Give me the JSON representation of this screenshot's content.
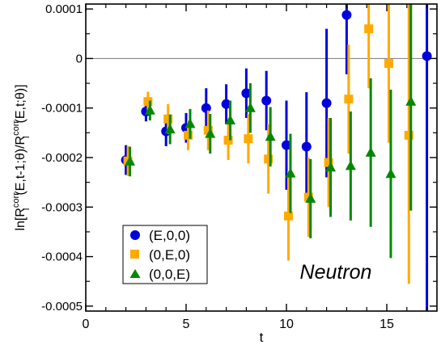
{
  "chart_data": {
    "type": "scatter",
    "xlabel": "t",
    "ylabel": {
      "main": "ln[R",
      "sup1": "corr",
      "sub1": "i",
      "mid": "(E,t-1;θ)/R",
      "sup2": "corr",
      "sub2": "i",
      "end": "(E,t;θ)]"
    },
    "xlim": [
      0,
      17.5
    ],
    "ylim": [
      -0.00051,
      0.00011
    ],
    "xticks": [
      0,
      5,
      10,
      15
    ],
    "yticks": [
      0.0001,
      0,
      -0.0001,
      -0.0002,
      -0.0003,
      -0.0004,
      -0.0005
    ],
    "xtick_labels": [
      "0",
      "5",
      "10",
      "15"
    ],
    "ytick_labels": [
      "0.0001",
      "0",
      "-0.0001",
      "-0.0002",
      "-0.0003",
      "-0.0004",
      "-0.0005"
    ],
    "reference_line": 0,
    "annotation": "Neutron",
    "legend_position": "bottom-left",
    "series": [
      {
        "name": "(E,0,0)",
        "marker": "circle",
        "color": "#0000dd",
        "points": [
          {
            "x": 2,
            "y": -0.000205,
            "err": 3e-05
          },
          {
            "x": 3,
            "y": -0.000107,
            "err": 2e-05
          },
          {
            "x": 4,
            "y": -0.000147,
            "err": 3e-05
          },
          {
            "x": 5,
            "y": -0.00014,
            "err": 3e-05
          },
          {
            "x": 6,
            "y": -0.0001,
            "err": 4e-05
          },
          {
            "x": 7,
            "y": -9.2e-05,
            "err": 4e-05
          },
          {
            "x": 8,
            "y": -7e-05,
            "err": 5e-05
          },
          {
            "x": 9,
            "y": -8.5e-05,
            "err": 6e-05
          },
          {
            "x": 10,
            "y": -0.000175,
            "err": 9e-05
          },
          {
            "x": 11,
            "y": -0.000178,
            "err": 0.00011
          },
          {
            "x": 12,
            "y": -9e-05,
            "err": 0.00015
          },
          {
            "x": 13,
            "y": 8.8e-05,
            "err": 0.00012
          },
          {
            "x": 17,
            "y": 5e-06,
            "err": 0.00052
          }
        ]
      },
      {
        "name": "(0,E,0)",
        "marker": "square",
        "color": "#ffaa00",
        "points": [
          {
            "x": 2.1,
            "y": -0.000207,
            "err": 3e-05
          },
          {
            "x": 3.1,
            "y": -8.7e-05,
            "err": 2e-05
          },
          {
            "x": 4.1,
            "y": -0.000122,
            "err": 3e-05
          },
          {
            "x": 5.1,
            "y": -0.000155,
            "err": 3e-05
          },
          {
            "x": 6.1,
            "y": -0.000145,
            "err": 4e-05
          },
          {
            "x": 7.1,
            "y": -0.000165,
            "err": 4e-05
          },
          {
            "x": 8.1,
            "y": -0.000162,
            "err": 5e-05
          },
          {
            "x": 9.1,
            "y": -0.000203,
            "err": 7e-05
          },
          {
            "x": 10.1,
            "y": -0.000318,
            "err": 9e-05
          },
          {
            "x": 11.1,
            "y": -0.00028,
            "err": 8e-05
          },
          {
            "x": 12.1,
            "y": -0.00021,
            "err": 9e-05
          },
          {
            "x": 13.1,
            "y": -8.2e-05,
            "err": 0.00011
          },
          {
            "x": 14.1,
            "y": 6e-05,
            "err": 0.00012
          },
          {
            "x": 15.1,
            "y": -1e-05,
            "err": 0.00016
          },
          {
            "x": 16.1,
            "y": -0.000155,
            "err": 0.0003
          }
        ]
      },
      {
        "name": "(0,0,E)",
        "marker": "triangle",
        "color": "#008800",
        "points": [
          {
            "x": 2.2,
            "y": -0.000208,
            "err": 3e-05
          },
          {
            "x": 3.2,
            "y": -0.000105,
            "err": 2e-05
          },
          {
            "x": 4.2,
            "y": -0.000143,
            "err": 3e-05
          },
          {
            "x": 5.2,
            "y": -0.000132,
            "err": 3e-05
          },
          {
            "x": 6.2,
            "y": -0.000152,
            "err": 4e-05
          },
          {
            "x": 7.2,
            "y": -0.000125,
            "err": 4e-05
          },
          {
            "x": 8.2,
            "y": -0.0001,
            "err": 5e-05
          },
          {
            "x": 9.2,
            "y": -0.000158,
            "err": 6e-05
          },
          {
            "x": 10.2,
            "y": -0.000232,
            "err": 8e-05
          },
          {
            "x": 11.2,
            "y": -0.000283,
            "err": 8e-05
          },
          {
            "x": 12.2,
            "y": -0.00022,
            "err": 0.0001
          },
          {
            "x": 13.2,
            "y": -0.000217,
            "err": 0.00011
          },
          {
            "x": 14.2,
            "y": -0.00019,
            "err": 0.00015
          },
          {
            "x": 15.2,
            "y": -0.000233,
            "err": 0.00017
          },
          {
            "x": 16.2,
            "y": -8.7e-05,
            "err": 0.00022
          }
        ]
      }
    ]
  }
}
